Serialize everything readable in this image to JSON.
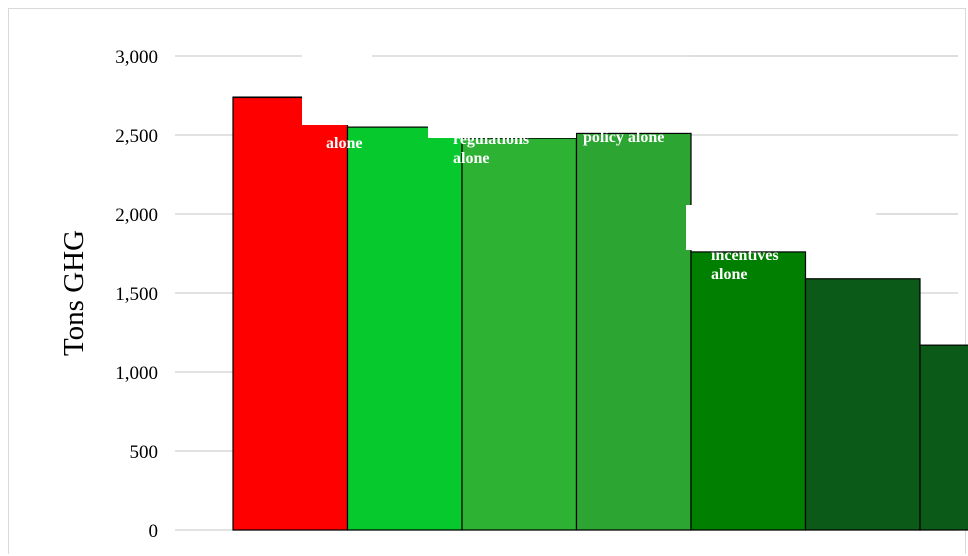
{
  "chart_data": {
    "type": "bar",
    "title": "",
    "xlabel": "",
    "ylabel": "Tons GHG",
    "ylim": [
      0,
      3000
    ],
    "yticks": [
      "0",
      "500",
      "1,000",
      "1,500",
      "2,000",
      "2,500",
      "3,000"
    ],
    "ytick_values": [
      0,
      500,
      1000,
      1500,
      2000,
      2500,
      3000
    ],
    "grid": true,
    "values": [
      2740,
      2550,
      2480,
      2510,
      1760,
      1590,
      1170
    ],
    "bar_labels": [
      "",
      "alone",
      "regulations alone",
      "policy alone",
      "",
      "incentives alone",
      ""
    ],
    "colors": [
      "#ff0000",
      "#06c92e",
      "#2db234",
      "#2ca533",
      "#007f00",
      "#0b5a18",
      "#0b5a18"
    ]
  }
}
